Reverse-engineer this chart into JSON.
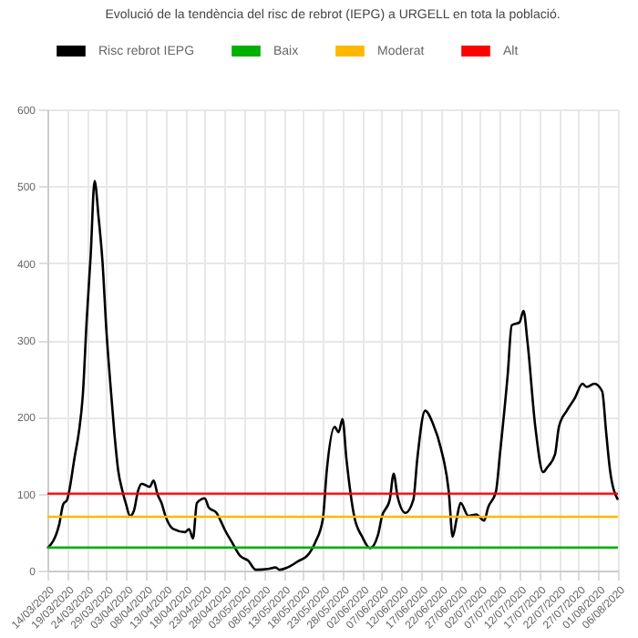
{
  "chart_data": {
    "type": "line",
    "title": "Evolució de la tendència del risc de rebrot (IEPG) a URGELL en tota la població.",
    "x": [
      "2020-03-14",
      "2020-03-17",
      "2020-03-18",
      "2020-03-19",
      "2020-03-21",
      "2020-03-22",
      "2020-03-23",
      "2020-03-24",
      "2020-03-25",
      "2020-03-26",
      "2020-03-27",
      "2020-03-28",
      "2020-03-29",
      "2020-03-30",
      "2020-03-31",
      "2020-04-01",
      "2020-04-02",
      "2020-04-03",
      "2020-04-04",
      "2020-04-05",
      "2020-04-06",
      "2020-04-07",
      "2020-04-09",
      "2020-04-10",
      "2020-04-11",
      "2020-04-12",
      "2020-04-13",
      "2020-04-15",
      "2020-04-18",
      "2020-04-19",
      "2020-04-20",
      "2020-04-21",
      "2020-04-23",
      "2020-04-24",
      "2020-04-26",
      "2020-04-27",
      "2020-04-28",
      "2020-04-30",
      "2020-05-02",
      "2020-05-04",
      "2020-05-06",
      "2020-05-09",
      "2020-05-11",
      "2020-05-12",
      "2020-05-14",
      "2020-05-17",
      "2020-05-19",
      "2020-05-21",
      "2020-05-23",
      "2020-05-24",
      "2020-05-26",
      "2020-05-27",
      "2020-05-28",
      "2020-05-29",
      "2020-05-31",
      "2020-06-02",
      "2020-06-04",
      "2020-06-06",
      "2020-06-07",
      "2020-06-09",
      "2020-06-10",
      "2020-06-11",
      "2020-06-13",
      "2020-06-15",
      "2020-06-16",
      "2020-06-18",
      "2020-06-20",
      "2020-06-22",
      "2020-06-24",
      "2020-06-25",
      "2020-06-26",
      "2020-06-27",
      "2020-06-29",
      "2020-07-01",
      "2020-07-03",
      "2020-07-04",
      "2020-07-06",
      "2020-07-07",
      "2020-07-09",
      "2020-07-10",
      "2020-07-12",
      "2020-07-13",
      "2020-07-14",
      "2020-07-16",
      "2020-07-18",
      "2020-07-19",
      "2020-07-21",
      "2020-07-22",
      "2020-07-24",
      "2020-07-26",
      "2020-07-28",
      "2020-07-29",
      "2020-07-31",
      "2020-08-02",
      "2020-08-03",
      "2020-08-04",
      "2020-08-06"
    ],
    "series": [
      {
        "name": "Risc rebrot IEPG",
        "color": "#000000",
        "values": [
          29,
          60,
          86,
          92,
          150,
          180,
          228,
          327,
          410,
          507,
          460,
          402,
          312,
          243,
          180,
          130,
          105,
          86,
          71,
          78,
          103,
          113,
          109,
          117,
          99,
          88,
          71,
          54,
          50,
          54,
          42,
          88,
          94,
          82,
          75,
          65,
          54,
          36,
          19,
          13,
          1,
          2,
          4,
          1,
          4,
          13,
          19,
          36,
          67,
          130,
          187,
          180,
          197,
          145,
          70,
          44,
          29,
          46,
          70,
          92,
          126,
          96,
          75,
          92,
          145,
          208,
          191,
          159,
          103,
          44,
          67,
          88,
          71,
          73,
          65,
          82,
          103,
          151,
          256,
          319,
          323,
          338,
          298,
          187,
          128,
          134,
          151,
          187,
          208,
          224,
          243,
          239,
          243,
          233,
          180,
          130,
          92
        ]
      }
    ],
    "ref_lines": [
      {
        "axis": "y",
        "value": 30,
        "label": "Baix",
        "color": "#00b000"
      },
      {
        "axis": "y",
        "value": 70,
        "label": "Moderat",
        "color": "#ffb800"
      },
      {
        "axis": "y",
        "value": 100,
        "label": "Alt",
        "color": "#ff0000"
      }
    ],
    "ylim": [
      0,
      600
    ],
    "yticks": [
      0,
      100,
      200,
      300,
      400,
      500,
      600
    ],
    "xlim": [
      "2020-03-14",
      "2020-08-06"
    ],
    "xticks": [
      {
        "value": "2020-03-14",
        "label": "14/03/2020"
      },
      {
        "value": "2020-03-19",
        "label": "19/03/2020"
      },
      {
        "value": "2020-03-24",
        "label": "24/03/2020"
      },
      {
        "value": "2020-03-29",
        "label": "29/03/2020"
      },
      {
        "value": "2020-04-03",
        "label": "03/04/2020"
      },
      {
        "value": "2020-04-08",
        "label": "08/04/2020"
      },
      {
        "value": "2020-04-13",
        "label": "13/04/2020"
      },
      {
        "value": "2020-04-18",
        "label": "18/04/2020"
      },
      {
        "value": "2020-04-23",
        "label": "23/04/2020"
      },
      {
        "value": "2020-04-28",
        "label": "28/04/2020"
      },
      {
        "value": "2020-05-03",
        "label": "03/05/2020"
      },
      {
        "value": "2020-05-08",
        "label": "08/05/2020"
      },
      {
        "value": "2020-05-13",
        "label": "13/05/2020"
      },
      {
        "value": "2020-05-18",
        "label": "18/05/2020"
      },
      {
        "value": "2020-05-23",
        "label": "23/05/2020"
      },
      {
        "value": "2020-05-28",
        "label": "28/05/2020"
      },
      {
        "value": "2020-06-02",
        "label": "02/06/2020"
      },
      {
        "value": "2020-06-07",
        "label": "07/06/2020"
      },
      {
        "value": "2020-06-12",
        "label": "12/06/2020"
      },
      {
        "value": "2020-06-17",
        "label": "17/06/2020"
      },
      {
        "value": "2020-06-22",
        "label": "22/06/2020"
      },
      {
        "value": "2020-06-27",
        "label": "27/06/2020"
      },
      {
        "value": "2020-07-02",
        "label": "02/07/2020"
      },
      {
        "value": "2020-07-07",
        "label": "07/07/2020"
      },
      {
        "value": "2020-07-12",
        "label": "12/07/2020"
      },
      {
        "value": "2020-07-17",
        "label": "17/07/2020"
      },
      {
        "value": "2020-07-22",
        "label": "22/07/2020"
      },
      {
        "value": "2020-07-27",
        "label": "27/07/2020"
      },
      {
        "value": "2020-08-01",
        "label": "01/08/2020"
      },
      {
        "value": "2020-08-06",
        "label": "06/08/2020"
      }
    ],
    "grid": true,
    "legend": "top",
    "marker": "none",
    "line_style": "solid"
  }
}
